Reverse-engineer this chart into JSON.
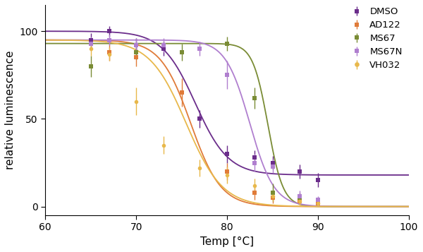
{
  "title": "",
  "xlabel": "Temp [°C]",
  "ylabel": "relative luminescence",
  "xlim": [
    60,
    100
  ],
  "ylim": [
    -5,
    115
  ],
  "xticks": [
    60,
    70,
    80,
    90,
    100
  ],
  "yticks": [
    0,
    50,
    100
  ],
  "legend_order": [
    "DMSO",
    "AD122",
    "MS67",
    "MS67N",
    "VH032"
  ],
  "background_color": "#ffffff",
  "series": {
    "DMSO": {
      "color": "#6b2d8b",
      "marker": "s",
      "markersize": 4,
      "x": [
        65,
        67,
        70,
        73,
        77,
        80,
        83,
        85,
        88,
        90
      ],
      "y": [
        95,
        100,
        92,
        90,
        50,
        30,
        28,
        25,
        20,
        15
      ],
      "yerr": [
        4,
        3,
        4,
        4,
        5,
        5,
        4,
        4,
        4,
        4
      ],
      "fit_top": 100,
      "fit_bottom": 18,
      "fit_tm": 76.5,
      "fit_hill": 5.5
    },
    "AD122": {
      "color": "#e07b39",
      "marker": "s",
      "markersize": 4,
      "x": [
        67,
        70,
        75,
        80,
        83,
        85,
        88,
        90
      ],
      "y": [
        88,
        85,
        65,
        20,
        8,
        5,
        3,
        2
      ],
      "yerr": [
        5,
        5,
        8,
        5,
        4,
        3,
        2,
        1
      ],
      "fit_top": 95,
      "fit_bottom": 0,
      "fit_tm": 76.0,
      "fit_hill": 6.0
    },
    "MS67": {
      "color": "#7a8c35",
      "marker": "s",
      "markersize": 4,
      "x": [
        65,
        70,
        75,
        80,
        83,
        85,
        88
      ],
      "y": [
        80,
        88,
        88,
        93,
        62,
        8,
        5
      ],
      "yerr": [
        6,
        4,
        5,
        4,
        6,
        5,
        3
      ],
      "fit_top": 93,
      "fit_bottom": 0,
      "fit_tm": 84.5,
      "fit_hill": 12.0
    },
    "MS67N": {
      "color": "#b07fcf",
      "marker": "s",
      "markersize": 4,
      "x": [
        65,
        67,
        70,
        73,
        77,
        80,
        83,
        85,
        88,
        90
      ],
      "y": [
        93,
        95,
        92,
        92,
        90,
        75,
        25,
        23,
        6,
        4
      ],
      "yerr": [
        4,
        3,
        4,
        4,
        4,
        8,
        5,
        4,
        3,
        2
      ],
      "fit_top": 95,
      "fit_bottom": 0,
      "fit_tm": 82.5,
      "fit_hill": 7.5
    },
    "VH032": {
      "color": "#e8b84b",
      "marker": "o",
      "markersize": 4,
      "x": [
        65,
        67,
        70,
        73,
        77,
        80,
        83,
        85,
        88,
        90
      ],
      "y": [
        90,
        87,
        60,
        35,
        22,
        18,
        12,
        6,
        3,
        2
      ],
      "yerr": [
        4,
        4,
        8,
        5,
        5,
        5,
        4,
        3,
        2,
        2
      ],
      "fit_top": 95,
      "fit_bottom": 0,
      "fit_tm": 75.5,
      "fit_hill": 5.0
    }
  }
}
